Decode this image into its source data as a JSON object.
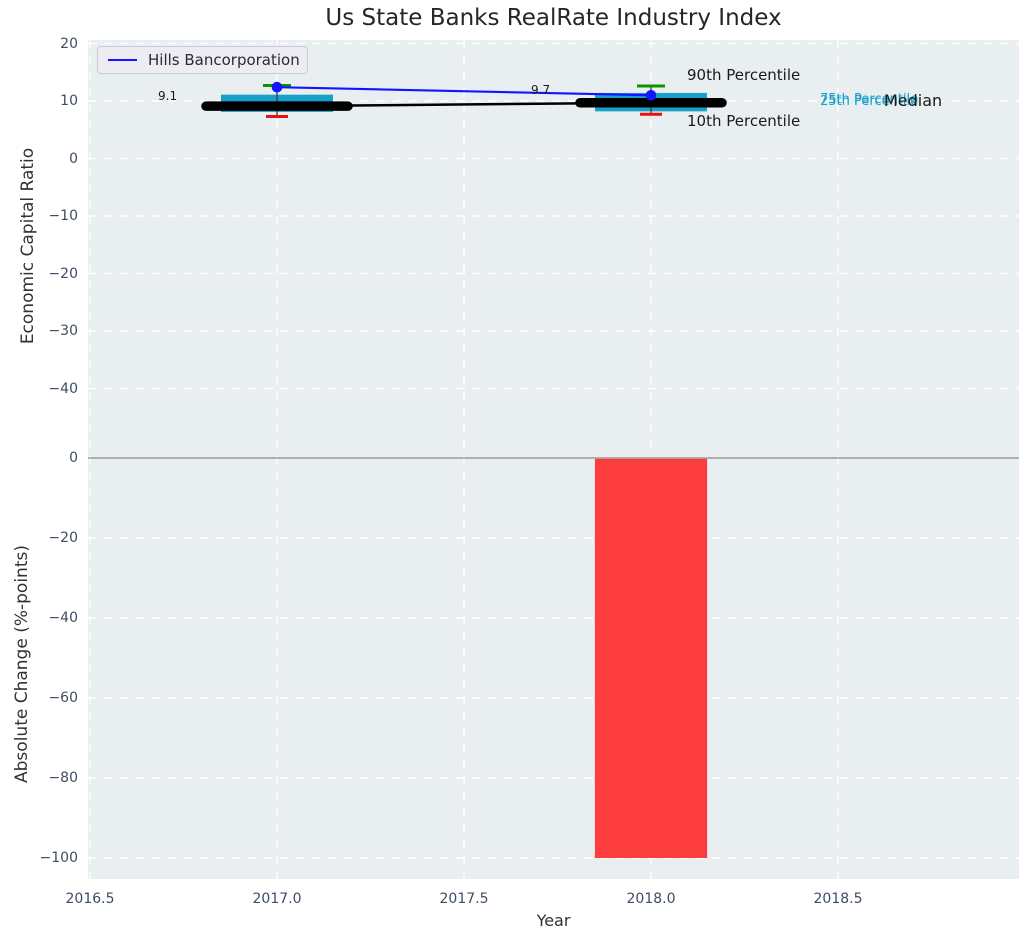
{
  "title": "Us State Banks RealRate Industry Index",
  "legend": {
    "label": "Hills Bancorporation"
  },
  "colors": {
    "axes_background": "#e9eef0",
    "grid": "#ffffff",
    "company_line": "#1414ff",
    "iqr_box": "#18a0cc",
    "median_line": "#000000",
    "p90_cap": "#0a9400",
    "p10_cap": "#ea1010",
    "bar": "#fb3d3d",
    "zero_line": "#a6a6a6",
    "tick_label": "#3e4d63",
    "title_text": "#262626"
  },
  "chart_data": [
    {
      "type": "line",
      "title": "Us State Banks RealRate Industry Index",
      "ylabel": "Economic Capital Ratio",
      "x": [
        2017,
        2018
      ],
      "series": [
        {
          "name": "Hills Bancorporation",
          "role": "company",
          "values": [
            12.4,
            11.0
          ]
        },
        {
          "name": "Median",
          "role": "median",
          "values": [
            9.1,
            9.7
          ]
        },
        {
          "name": "90th Percentile",
          "role": "p90",
          "values": [
            12.7,
            12.6
          ]
        },
        {
          "name": "75th Percentile",
          "role": "p75",
          "values": [
            11.1,
            11.4
          ]
        },
        {
          "name": "25th Percentile",
          "role": "p25",
          "values": [
            8.1,
            8.2
          ]
        },
        {
          "name": "10th Percentile",
          "role": "p10",
          "values": [
            7.3,
            7.7
          ]
        }
      ],
      "annotations": [
        {
          "text": "9.1",
          "target": "median value at 2017"
        },
        {
          "text": "9.7",
          "target": "median value at 2018"
        },
        {
          "text": "90th Percentile",
          "target": "p90"
        },
        {
          "text": "10th Percentile",
          "target": "p10"
        },
        {
          "text": "75th Percentile",
          "target": "p75"
        },
        {
          "text": "25th Percentile",
          "target": "p25"
        },
        {
          "text": "Median",
          "target": "median"
        }
      ],
      "yticks": [
        {
          "label": "20",
          "value": 20
        },
        {
          "label": "10",
          "value": 10
        },
        {
          "label": "0",
          "value": 0
        },
        {
          "label": "−10",
          "value": -10
        },
        {
          "label": "−20",
          "value": -20
        },
        {
          "label": "−30",
          "value": -30
        },
        {
          "label": "−40",
          "value": -40
        }
      ],
      "ylim": [
        -50,
        20.9
      ],
      "grid": true,
      "legend_position": "upper left"
    },
    {
      "type": "bar",
      "ylabel": "Absolute Change (%-points)",
      "xlabel": "Year",
      "x": [
        2018
      ],
      "values": [
        -100
      ],
      "bar_width": 0.3,
      "zero_line": true,
      "yticks": [
        {
          "label": "0",
          "value": 0
        },
        {
          "label": "−20",
          "value": -20
        },
        {
          "label": "−40",
          "value": -40
        },
        {
          "label": "−60",
          "value": -60
        },
        {
          "label": "−80",
          "value": -80
        },
        {
          "label": "−100",
          "value": -100
        }
      ],
      "xticks": [
        {
          "label": "2016.5",
          "value": 2016.5
        },
        {
          "label": "2017.0",
          "value": 2017.0
        },
        {
          "label": "2017.5",
          "value": 2017.5
        },
        {
          "label": "2018.0",
          "value": 2018.0
        },
        {
          "label": "2018.5",
          "value": 2018.5
        }
      ],
      "xlim": [
        2016.49,
        2018.98
      ],
      "ylim": [
        -107,
        1.8
      ],
      "grid": true
    }
  ]
}
